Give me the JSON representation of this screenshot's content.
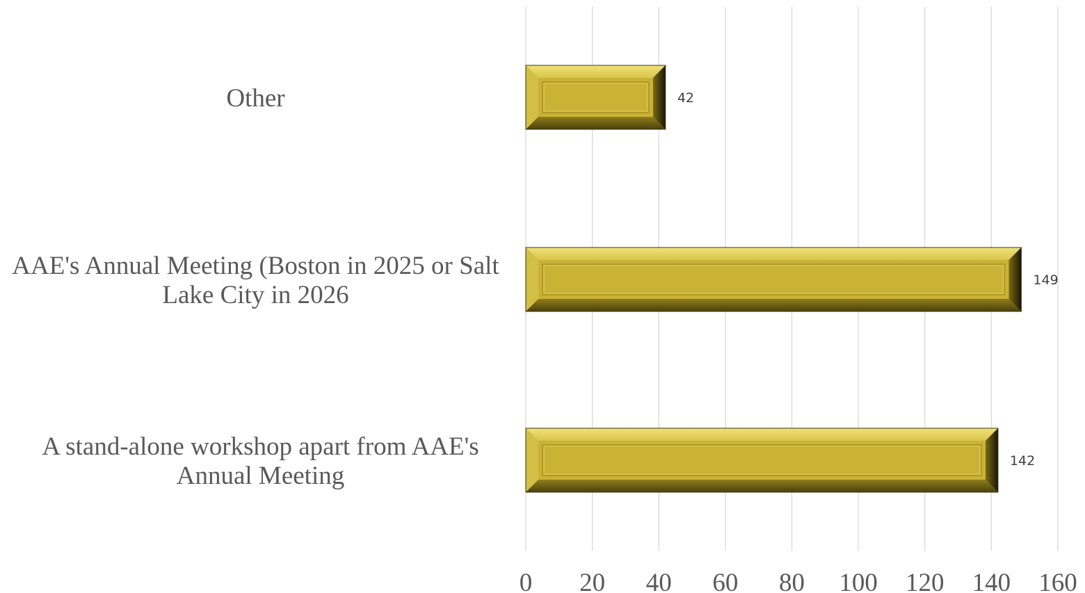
{
  "chart_data": {
    "type": "bar",
    "orientation": "horizontal",
    "categories": [
      "A stand-alone workshop apart from AAE's Annual Meeting",
      "AAE's Annual Meeting (Boston in 2025 or Salt Lake City in 2026",
      "Other"
    ],
    "values": [
      142,
      149,
      42
    ],
    "data_labels": [
      "142",
      "149",
      "42"
    ],
    "xlim": [
      0,
      160
    ],
    "x_ticks": [
      "0",
      "20",
      "40",
      "60",
      "80",
      "100",
      "120",
      "140",
      "160"
    ],
    "grid": "vertical",
    "legend": "none",
    "colors": {
      "bar_face": "#c9b236",
      "bar_light": "#e8d664",
      "bar_dark": "#5a4f10",
      "grid": "#d9d9d9",
      "text": "#595959"
    }
  }
}
